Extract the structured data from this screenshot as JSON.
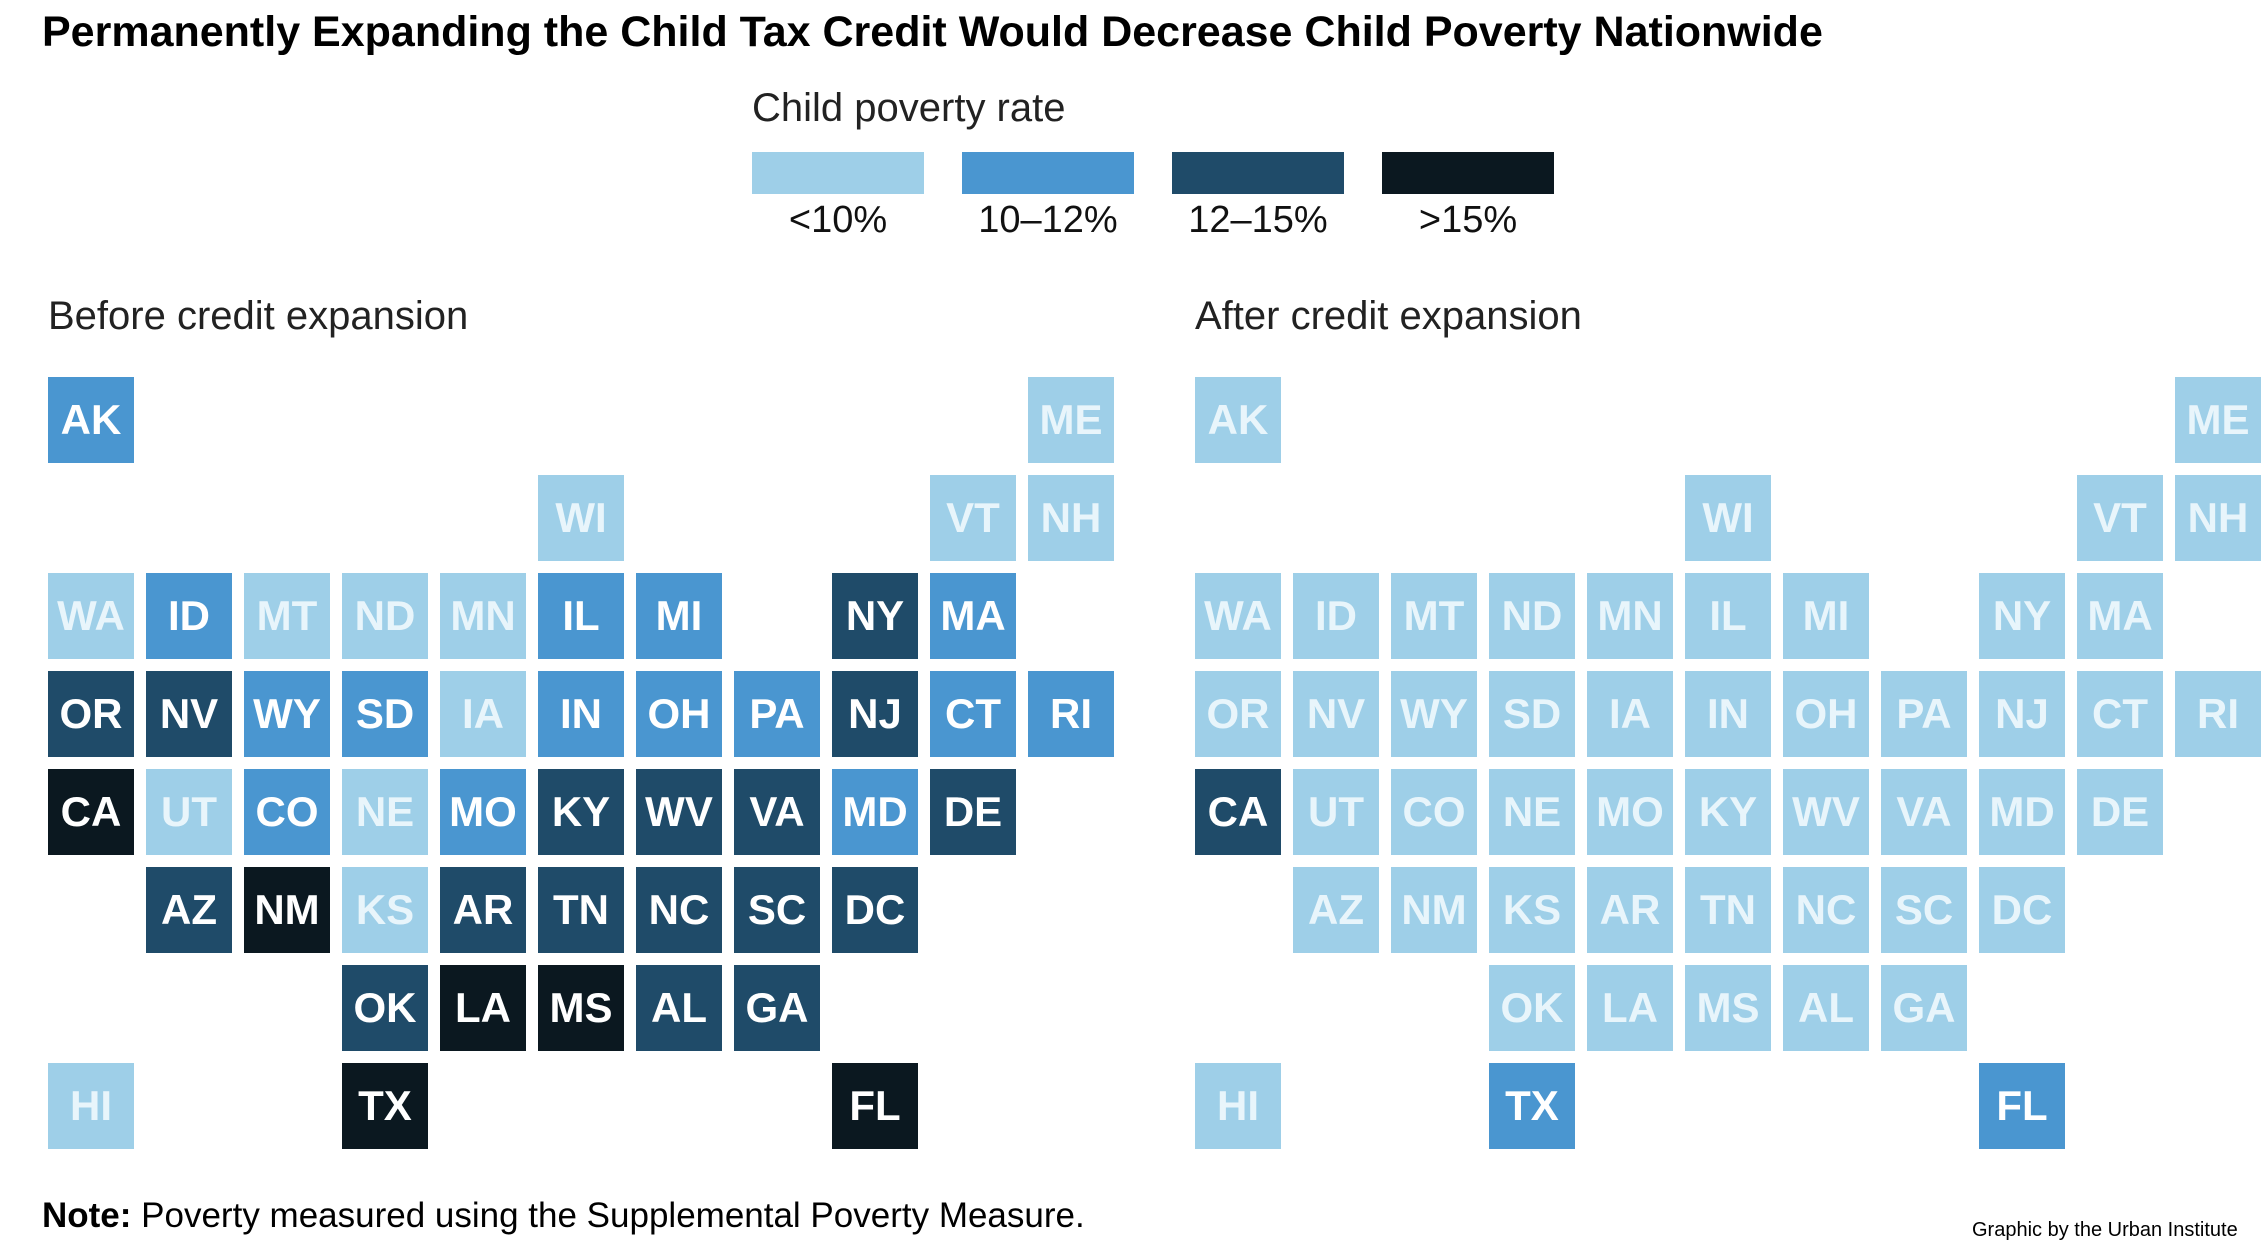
{
  "title": "Permanently Expanding the Child Tax Credit Would Decrease Child Poverty Nationwide",
  "legend": {
    "title": "Child poverty rate",
    "items": [
      {
        "label": "<10%",
        "color": "#9ecfe8"
      },
      {
        "label": "10–12%",
        "color": "#4a96d0"
      },
      {
        "label": "12–15%",
        "color": "#1f4b69"
      },
      {
        "label": ">15%",
        "color": "#0b1820"
      }
    ]
  },
  "note": {
    "label": "Note:",
    "text": " Poverty measured using the Supplemental Poverty Measure."
  },
  "credit": "Graphic by the Urban Institute",
  "chart_data": [
    {
      "type": "tile-map",
      "title": "Before credit expansion",
      "bin_labels": [
        "<10%",
        "10–12%",
        "12–15%",
        ">15%"
      ],
      "states": [
        {
          "abbr": "AK",
          "col": 0,
          "row": 0,
          "bin": 1
        },
        {
          "abbr": "ME",
          "col": 10,
          "row": 0,
          "bin": 0
        },
        {
          "abbr": "WI",
          "col": 5,
          "row": 1,
          "bin": 0
        },
        {
          "abbr": "VT",
          "col": 9,
          "row": 1,
          "bin": 0
        },
        {
          "abbr": "NH",
          "col": 10,
          "row": 1,
          "bin": 0
        },
        {
          "abbr": "WA",
          "col": 0,
          "row": 2,
          "bin": 0
        },
        {
          "abbr": "ID",
          "col": 1,
          "row": 2,
          "bin": 1
        },
        {
          "abbr": "MT",
          "col": 2,
          "row": 2,
          "bin": 0
        },
        {
          "abbr": "ND",
          "col": 3,
          "row": 2,
          "bin": 0
        },
        {
          "abbr": "MN",
          "col": 4,
          "row": 2,
          "bin": 0
        },
        {
          "abbr": "IL",
          "col": 5,
          "row": 2,
          "bin": 1
        },
        {
          "abbr": "MI",
          "col": 6,
          "row": 2,
          "bin": 1
        },
        {
          "abbr": "NY",
          "col": 8,
          "row": 2,
          "bin": 2
        },
        {
          "abbr": "MA",
          "col": 9,
          "row": 2,
          "bin": 1
        },
        {
          "abbr": "OR",
          "col": 0,
          "row": 3,
          "bin": 2
        },
        {
          "abbr": "NV",
          "col": 1,
          "row": 3,
          "bin": 2
        },
        {
          "abbr": "WY",
          "col": 2,
          "row": 3,
          "bin": 1
        },
        {
          "abbr": "SD",
          "col": 3,
          "row": 3,
          "bin": 1
        },
        {
          "abbr": "IA",
          "col": 4,
          "row": 3,
          "bin": 0
        },
        {
          "abbr": "IN",
          "col": 5,
          "row": 3,
          "bin": 1
        },
        {
          "abbr": "OH",
          "col": 6,
          "row": 3,
          "bin": 1
        },
        {
          "abbr": "PA",
          "col": 7,
          "row": 3,
          "bin": 1
        },
        {
          "abbr": "NJ",
          "col": 8,
          "row": 3,
          "bin": 2
        },
        {
          "abbr": "CT",
          "col": 9,
          "row": 3,
          "bin": 1
        },
        {
          "abbr": "RI",
          "col": 10,
          "row": 3,
          "bin": 1
        },
        {
          "abbr": "CA",
          "col": 0,
          "row": 4,
          "bin": 3
        },
        {
          "abbr": "UT",
          "col": 1,
          "row": 4,
          "bin": 0
        },
        {
          "abbr": "CO",
          "col": 2,
          "row": 4,
          "bin": 1
        },
        {
          "abbr": "NE",
          "col": 3,
          "row": 4,
          "bin": 0
        },
        {
          "abbr": "MO",
          "col": 4,
          "row": 4,
          "bin": 1
        },
        {
          "abbr": "KY",
          "col": 5,
          "row": 4,
          "bin": 2
        },
        {
          "abbr": "WV",
          "col": 6,
          "row": 4,
          "bin": 2
        },
        {
          "abbr": "VA",
          "col": 7,
          "row": 4,
          "bin": 2
        },
        {
          "abbr": "MD",
          "col": 8,
          "row": 4,
          "bin": 1
        },
        {
          "abbr": "DE",
          "col": 9,
          "row": 4,
          "bin": 2
        },
        {
          "abbr": "AZ",
          "col": 1,
          "row": 5,
          "bin": 2
        },
        {
          "abbr": "NM",
          "col": 2,
          "row": 5,
          "bin": 3
        },
        {
          "abbr": "KS",
          "col": 3,
          "row": 5,
          "bin": 0
        },
        {
          "abbr": "AR",
          "col": 4,
          "row": 5,
          "bin": 2
        },
        {
          "abbr": "TN",
          "col": 5,
          "row": 5,
          "bin": 2
        },
        {
          "abbr": "NC",
          "col": 6,
          "row": 5,
          "bin": 2
        },
        {
          "abbr": "SC",
          "col": 7,
          "row": 5,
          "bin": 2
        },
        {
          "abbr": "DC",
          "col": 8,
          "row": 5,
          "bin": 2
        },
        {
          "abbr": "OK",
          "col": 3,
          "row": 6,
          "bin": 2
        },
        {
          "abbr": "LA",
          "col": 4,
          "row": 6,
          "bin": 3
        },
        {
          "abbr": "MS",
          "col": 5,
          "row": 6,
          "bin": 3
        },
        {
          "abbr": "AL",
          "col": 6,
          "row": 6,
          "bin": 2
        },
        {
          "abbr": "GA",
          "col": 7,
          "row": 6,
          "bin": 2
        },
        {
          "abbr": "HI",
          "col": 0,
          "row": 7,
          "bin": 0
        },
        {
          "abbr": "TX",
          "col": 3,
          "row": 7,
          "bin": 3
        },
        {
          "abbr": "FL",
          "col": 8,
          "row": 7,
          "bin": 3
        }
      ]
    },
    {
      "type": "tile-map",
      "title": "After credit expansion",
      "bin_labels": [
        "<10%",
        "10–12%",
        "12–15%",
        ">15%"
      ],
      "states": [
        {
          "abbr": "AK",
          "col": 0,
          "row": 0,
          "bin": 0
        },
        {
          "abbr": "ME",
          "col": 10,
          "row": 0,
          "bin": 0
        },
        {
          "abbr": "WI",
          "col": 5,
          "row": 1,
          "bin": 0
        },
        {
          "abbr": "VT",
          "col": 9,
          "row": 1,
          "bin": 0
        },
        {
          "abbr": "NH",
          "col": 10,
          "row": 1,
          "bin": 0
        },
        {
          "abbr": "WA",
          "col": 0,
          "row": 2,
          "bin": 0
        },
        {
          "abbr": "ID",
          "col": 1,
          "row": 2,
          "bin": 0
        },
        {
          "abbr": "MT",
          "col": 2,
          "row": 2,
          "bin": 0
        },
        {
          "abbr": "ND",
          "col": 3,
          "row": 2,
          "bin": 0
        },
        {
          "abbr": "MN",
          "col": 4,
          "row": 2,
          "bin": 0
        },
        {
          "abbr": "IL",
          "col": 5,
          "row": 2,
          "bin": 0
        },
        {
          "abbr": "MI",
          "col": 6,
          "row": 2,
          "bin": 0
        },
        {
          "abbr": "NY",
          "col": 8,
          "row": 2,
          "bin": 0
        },
        {
          "abbr": "MA",
          "col": 9,
          "row": 2,
          "bin": 0
        },
        {
          "abbr": "OR",
          "col": 0,
          "row": 3,
          "bin": 0
        },
        {
          "abbr": "NV",
          "col": 1,
          "row": 3,
          "bin": 0
        },
        {
          "abbr": "WY",
          "col": 2,
          "row": 3,
          "bin": 0
        },
        {
          "abbr": "SD",
          "col": 3,
          "row": 3,
          "bin": 0
        },
        {
          "abbr": "IA",
          "col": 4,
          "row": 3,
          "bin": 0
        },
        {
          "abbr": "IN",
          "col": 5,
          "row": 3,
          "bin": 0
        },
        {
          "abbr": "OH",
          "col": 6,
          "row": 3,
          "bin": 0
        },
        {
          "abbr": "PA",
          "col": 7,
          "row": 3,
          "bin": 0
        },
        {
          "abbr": "NJ",
          "col": 8,
          "row": 3,
          "bin": 0
        },
        {
          "abbr": "CT",
          "col": 9,
          "row": 3,
          "bin": 0
        },
        {
          "abbr": "RI",
          "col": 10,
          "row": 3,
          "bin": 0
        },
        {
          "abbr": "CA",
          "col": 0,
          "row": 4,
          "bin": 2
        },
        {
          "abbr": "UT",
          "col": 1,
          "row": 4,
          "bin": 0
        },
        {
          "abbr": "CO",
          "col": 2,
          "row": 4,
          "bin": 0
        },
        {
          "abbr": "NE",
          "col": 3,
          "row": 4,
          "bin": 0
        },
        {
          "abbr": "MO",
          "col": 4,
          "row": 4,
          "bin": 0
        },
        {
          "abbr": "KY",
          "col": 5,
          "row": 4,
          "bin": 0
        },
        {
          "abbr": "WV",
          "col": 6,
          "row": 4,
          "bin": 0
        },
        {
          "abbr": "VA",
          "col": 7,
          "row": 4,
          "bin": 0
        },
        {
          "abbr": "MD",
          "col": 8,
          "row": 4,
          "bin": 0
        },
        {
          "abbr": "DE",
          "col": 9,
          "row": 4,
          "bin": 0
        },
        {
          "abbr": "AZ",
          "col": 1,
          "row": 5,
          "bin": 0
        },
        {
          "abbr": "NM",
          "col": 2,
          "row": 5,
          "bin": 0
        },
        {
          "abbr": "KS",
          "col": 3,
          "row": 5,
          "bin": 0
        },
        {
          "abbr": "AR",
          "col": 4,
          "row": 5,
          "bin": 0
        },
        {
          "abbr": "TN",
          "col": 5,
          "row": 5,
          "bin": 0
        },
        {
          "abbr": "NC",
          "col": 6,
          "row": 5,
          "bin": 0
        },
        {
          "abbr": "SC",
          "col": 7,
          "row": 5,
          "bin": 0
        },
        {
          "abbr": "DC",
          "col": 8,
          "row": 5,
          "bin": 0
        },
        {
          "abbr": "OK",
          "col": 3,
          "row": 6,
          "bin": 0
        },
        {
          "abbr": "LA",
          "col": 4,
          "row": 6,
          "bin": 0
        },
        {
          "abbr": "MS",
          "col": 5,
          "row": 6,
          "bin": 0
        },
        {
          "abbr": "AL",
          "col": 6,
          "row": 6,
          "bin": 0
        },
        {
          "abbr": "GA",
          "col": 7,
          "row": 6,
          "bin": 0
        },
        {
          "abbr": "HI",
          "col": 0,
          "row": 7,
          "bin": 0
        },
        {
          "abbr": "TX",
          "col": 3,
          "row": 7,
          "bin": 1
        },
        {
          "abbr": "FL",
          "col": 8,
          "row": 7,
          "bin": 1
        }
      ]
    }
  ]
}
